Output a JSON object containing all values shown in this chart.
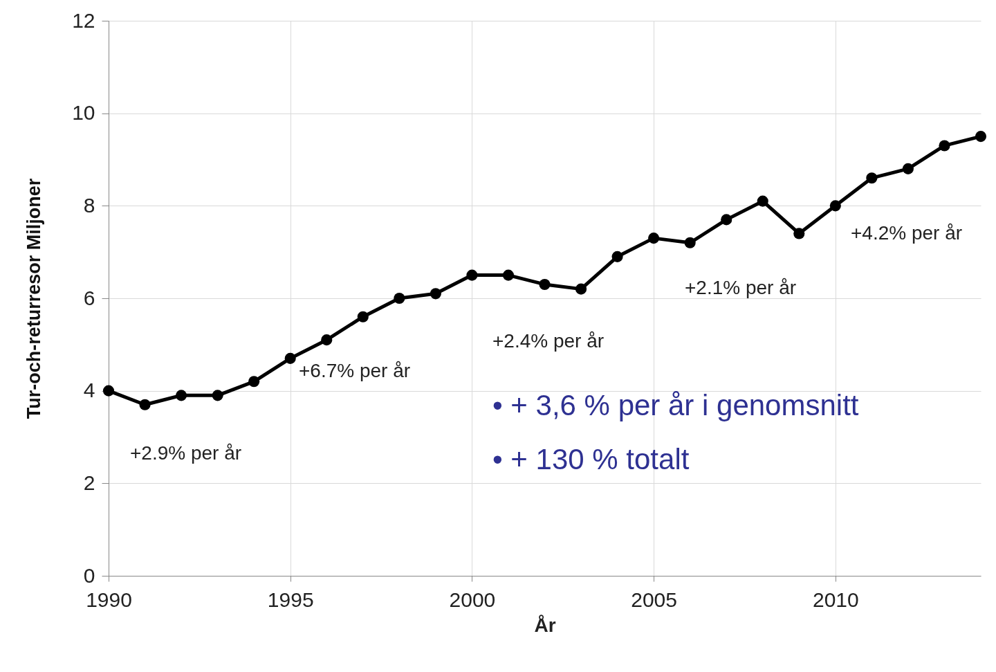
{
  "chart_data": {
    "type": "line",
    "xlabel": "År",
    "ylabel": "Tur-och-returresor        Miljoner",
    "x": [
      1990,
      1991,
      1992,
      1993,
      1994,
      1995,
      1996,
      1997,
      1998,
      1999,
      2000,
      2001,
      2002,
      2003,
      2004,
      2005,
      2006,
      2007,
      2008,
      2009,
      2010,
      2011,
      2012,
      2013,
      2014
    ],
    "series": [
      {
        "color": "#000000",
        "values": [
          4.0,
          3.7,
          3.9,
          3.9,
          4.2,
          4.7,
          5.1,
          5.6,
          6.0,
          6.1,
          6.5,
          6.5,
          6.3,
          6.2,
          6.9,
          7.3,
          7.2,
          7.7,
          8.1,
          7.4,
          8.0,
          8.6,
          8.8,
          9.3,
          9.5
        ]
      }
    ],
    "xlim": [
      1990,
      2014
    ],
    "xticks": [
      1990,
      1995,
      2000,
      2005,
      2010
    ],
    "ylim": [
      0,
      12
    ],
    "yticks": [
      0,
      2,
      4,
      6,
      8,
      10,
      12
    ],
    "grid": true,
    "marker": "circle",
    "line_style": "solid",
    "annotations": [
      "+2.9% per år",
      "+6.7% per år",
      "+2.4% per år",
      "+2.1% per år",
      "+4.2% per år",
      "• + 3,6 % per år i genomsnitt",
      "• + 130 % totalt"
    ]
  }
}
